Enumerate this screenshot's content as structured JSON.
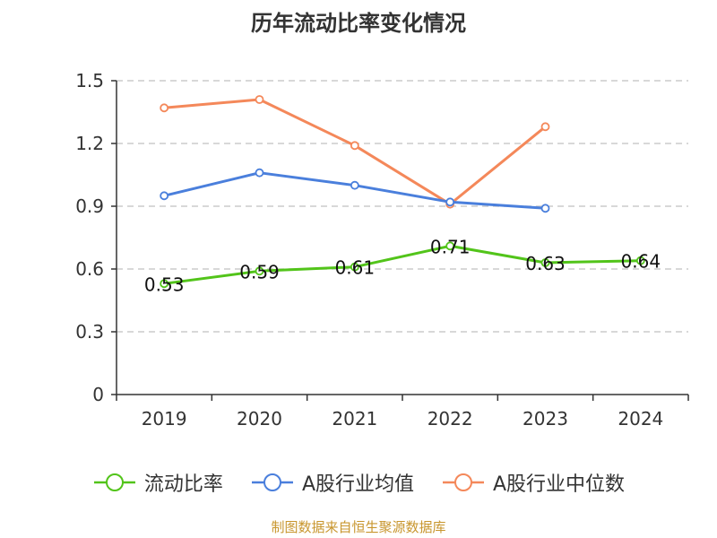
{
  "title": "历年流动比率变化情况",
  "source_note": "制图数据来自恒生聚源数据库",
  "chart_data": {
    "type": "line",
    "title": "历年流动比率变化情况",
    "xlabel": "",
    "ylabel": "",
    "categories": [
      "2019",
      "2020",
      "2021",
      "2022",
      "2023",
      "2024"
    ],
    "ylim": [
      0,
      1.5
    ],
    "yticks": [
      "0",
      "0.3",
      "0.6",
      "0.9",
      "1.2",
      "1.5"
    ],
    "grid": true,
    "legend_position": "bottom",
    "series": [
      {
        "name": "流动比率",
        "color": "#52c41a",
        "values": [
          0.53,
          0.59,
          0.61,
          0.71,
          0.63,
          0.64
        ],
        "data_labels": [
          "0.53",
          "0.59",
          "0.61",
          "0.71",
          "0.63",
          "0.64"
        ]
      },
      {
        "name": "A股行业均值",
        "color": "#4a7fdc",
        "values": [
          0.95,
          1.06,
          1.0,
          0.92,
          0.89,
          null
        ]
      },
      {
        "name": "A股行业中位数",
        "color": "#f4885a",
        "values": [
          1.37,
          1.41,
          1.19,
          0.91,
          1.28,
          null
        ]
      }
    ]
  }
}
